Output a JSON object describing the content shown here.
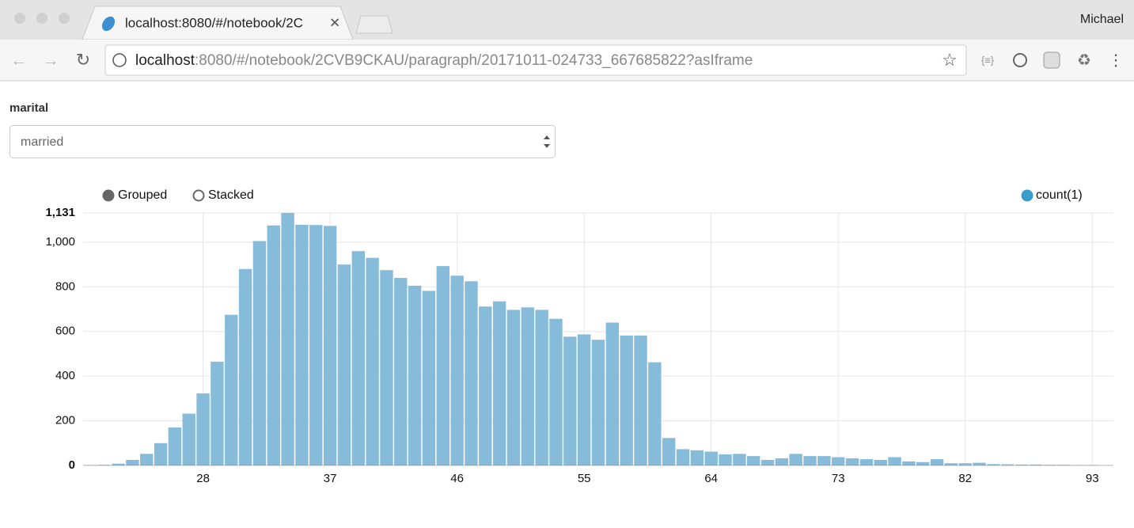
{
  "browser": {
    "tab_title": "localhost:8080/#/notebook/2C",
    "user": "Michael",
    "url_host": "localhost",
    "url_rest": ":8080/#/notebook/2CVB9CKAU/paragraph/20171011-024733_667685822?asIframe"
  },
  "form": {
    "label": "marital",
    "selected": "married"
  },
  "controls": [
    "Grouped",
    "Stacked"
  ],
  "chart_data": {
    "type": "bar",
    "categories": [
      null,
      null,
      null,
      null,
      null,
      null,
      null,
      null,
      "28",
      null,
      null,
      null,
      null,
      null,
      null,
      null,
      null,
      "37",
      null,
      null,
      null,
      null,
      null,
      null,
      null,
      null,
      "46",
      null,
      null,
      null,
      null,
      null,
      null,
      null,
      null,
      "55",
      null,
      null,
      null,
      null,
      null,
      null,
      null,
      null,
      "64",
      null,
      null,
      null,
      null,
      null,
      null,
      null,
      null,
      "73",
      null,
      null,
      null,
      null,
      null,
      null,
      null,
      null,
      "82",
      null,
      null,
      null,
      null,
      null,
      null,
      null,
      null,
      "93",
      null
    ],
    "series": [
      {
        "name": "count(1)",
        "color": "#7fb8d8",
        "legend_color": "#3a9ccc",
        "values": [
          2,
          3,
          8,
          25,
          52,
          100,
          170,
          232,
          323,
          465,
          675,
          880,
          1005,
          1075,
          1131,
          1078,
          1077,
          1073,
          900,
          960,
          930,
          875,
          840,
          805,
          782,
          893,
          850,
          825,
          712,
          735,
          697,
          708,
          697,
          657,
          577,
          587,
          563,
          640,
          582,
          582,
          462,
          123,
          73,
          68,
          62,
          50,
          52,
          42,
          25,
          32,
          52,
          42,
          42,
          37,
          32,
          28,
          25,
          37,
          18,
          15,
          28,
          10,
          10,
          12,
          6,
          5,
          4,
          4,
          3,
          3,
          2,
          2,
          1
        ]
      }
    ],
    "ylim": [
      0,
      1131
    ],
    "yticks": [
      0,
      200,
      400,
      600,
      800,
      {
        "value": 1000,
        "label": "1,000"
      },
      {
        "value": 1131,
        "label": "1,131"
      }
    ],
    "grid": true
  }
}
